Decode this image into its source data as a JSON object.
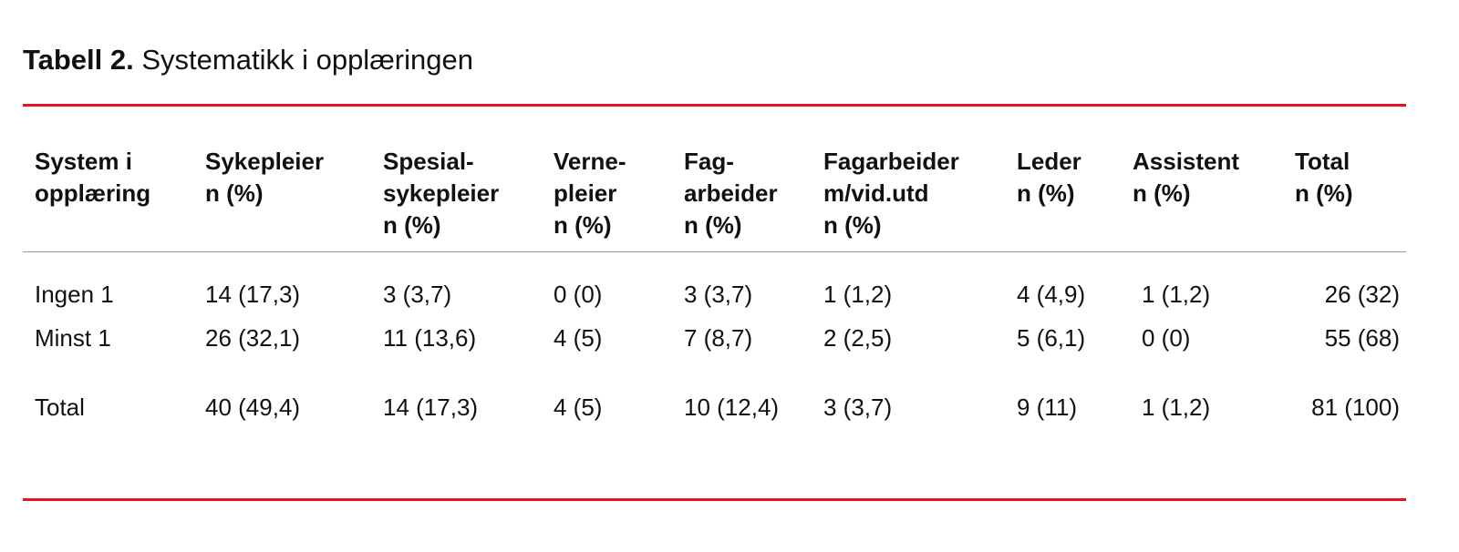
{
  "title": {
    "label": "Tabell 2.",
    "text": "Systematikk i opplæringen"
  },
  "colors": {
    "rule": "#e3161b",
    "divider": "#999999"
  },
  "table": {
    "headers": [
      [
        "System i",
        "opplæring"
      ],
      [
        "Sykepleier",
        "n (%)"
      ],
      [
        "Spesial-",
        "sykepleier",
        "n (%)"
      ],
      [
        "Verne-",
        "pleier",
        "n (%)"
      ],
      [
        "Fag-",
        "arbeider",
        "n (%)"
      ],
      [
        "Fagarbeider",
        "m/vid.utd",
        "n (%)"
      ],
      [
        "Leder",
        "n (%)"
      ],
      [
        "Assistent",
        "n (%)"
      ],
      [
        "Total",
        "n (%)"
      ]
    ],
    "rows": [
      [
        "Ingen 1",
        "14 (17,3)",
        "3 (3,7)",
        "0 (0)",
        "3 (3,7)",
        "1 (1,2)",
        "4 (4,9)",
        "1 (1,2)",
        "26 (32)"
      ],
      [
        "Minst 1",
        "26 (32,1)",
        "11 (13,6)",
        "4 (5)",
        "7 (8,7)",
        "2 (2,5)",
        "5 (6,1)",
        "0 (0)",
        "55 (68)"
      ],
      [
        "Total",
        "40 (49,4)",
        "14 (17,3)",
        "4 (5)",
        "10 (12,4)",
        "3 (3,7)",
        "9 (11)",
        "1 (1,2)",
        "81 (100)"
      ]
    ]
  }
}
